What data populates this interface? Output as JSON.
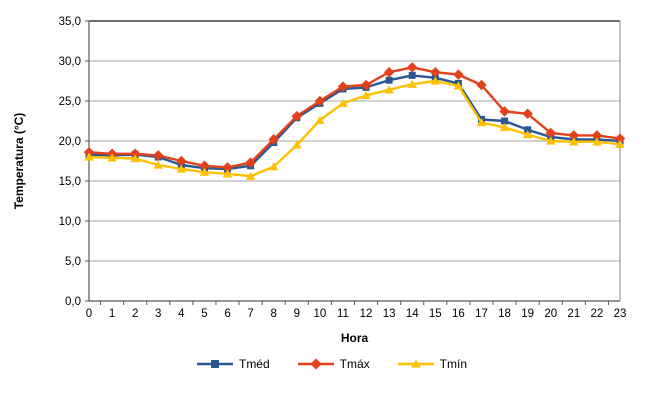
{
  "chart_data": {
    "type": "line",
    "title": "",
    "xlabel": "Hora",
    "ylabel": "Temperatura (°C)",
    "x": [
      0,
      1,
      2,
      3,
      4,
      5,
      6,
      7,
      8,
      9,
      10,
      11,
      12,
      13,
      14,
      15,
      16,
      17,
      18,
      19,
      20,
      21,
      22,
      23
    ],
    "x_tick_labels": [
      "0",
      "1",
      "2",
      "3",
      "4",
      "5",
      "6",
      "7",
      "8",
      "9",
      "10",
      "11",
      "12",
      "13",
      "14",
      "15",
      "16",
      "17",
      "18",
      "19",
      "20",
      "21",
      "22",
      "23"
    ],
    "ylim": [
      0,
      35
    ],
    "ytick_step": 5,
    "y_tick_labels": [
      "0,0",
      "5,0",
      "10,0",
      "15,0",
      "20,0",
      "25,0",
      "30,0",
      "35,0"
    ],
    "grid": true,
    "legend_position": "bottom",
    "series": [
      {
        "name": "Tméd",
        "marker": "square",
        "color": "#2B5892",
        "values": [
          18.3,
          18.2,
          18.3,
          18.0,
          17.0,
          16.6,
          16.5,
          16.9,
          19.8,
          22.9,
          24.7,
          26.5,
          26.7,
          27.6,
          28.2,
          27.9,
          27.2,
          22.7,
          22.5,
          21.4,
          20.5,
          20.2,
          20.2,
          20.0
        ]
      },
      {
        "name": "Tmáx",
        "marker": "diamond",
        "color": "#E2411B",
        "values": [
          18.6,
          18.4,
          18.4,
          18.2,
          17.5,
          16.9,
          16.7,
          17.3,
          20.2,
          23.1,
          25.0,
          26.8,
          27.0,
          28.6,
          29.2,
          28.6,
          28.3,
          27.0,
          23.7,
          23.4,
          21.0,
          20.7,
          20.7,
          20.3
        ]
      },
      {
        "name": "Tmín",
        "marker": "triangle",
        "color": "#FFC000",
        "values": [
          18.0,
          17.9,
          17.8,
          17.0,
          16.5,
          16.1,
          15.9,
          15.6,
          16.8,
          19.5,
          22.6,
          24.7,
          25.7,
          26.4,
          27.1,
          27.5,
          26.9,
          22.3,
          21.7,
          20.8,
          20.0,
          19.9,
          19.9,
          19.6
        ]
      }
    ],
    "style": {
      "gridline_color": "#A6A6A6",
      "axis_color": "#595959",
      "plot_border_color": "#808080",
      "tick_label_color": "#000000"
    }
  }
}
